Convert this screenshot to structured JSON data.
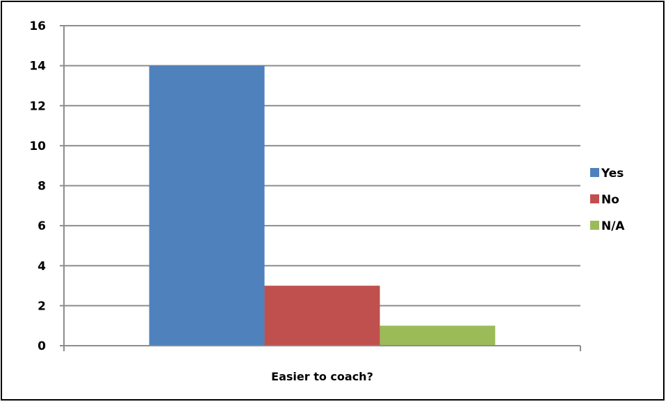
{
  "chart_data": {
    "type": "bar",
    "title": "",
    "xlabel": "",
    "ylabel": "",
    "categories": [
      "Easier to coach?"
    ],
    "series": [
      {
        "name": "Yes",
        "values": [
          14
        ],
        "color": "#4F81BD"
      },
      {
        "name": "No",
        "values": [
          3
        ],
        "color": "#C0504D"
      },
      {
        "name": "N/A",
        "values": [
          1
        ],
        "color": "#9BBB59"
      }
    ],
    "ylim": [
      0,
      16
    ],
    "yticks": [
      "0",
      "2",
      "4",
      "6",
      "8",
      "10",
      "12",
      "14",
      "16"
    ],
    "grid": true,
    "legend_position": "right"
  }
}
